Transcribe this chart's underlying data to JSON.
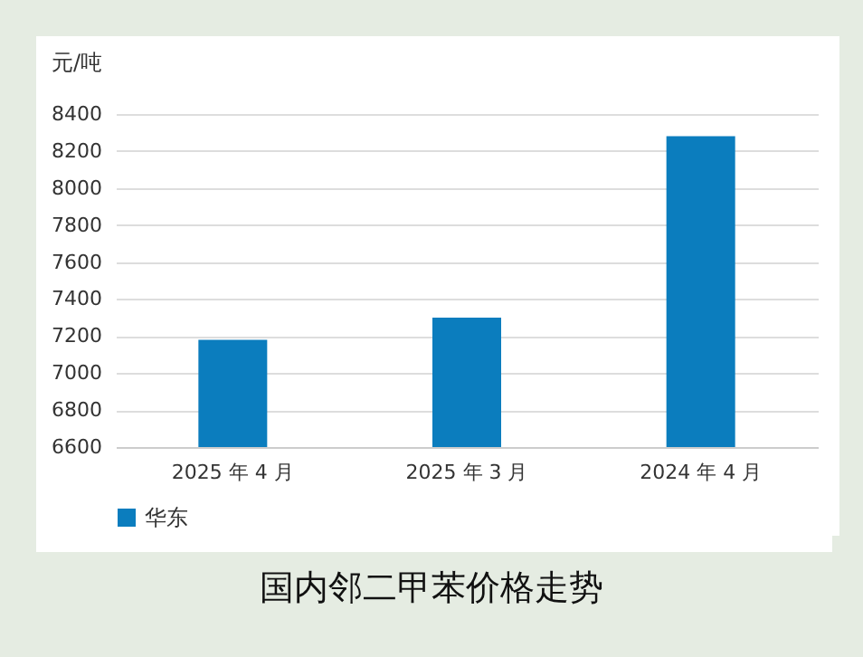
{
  "chart_data": {
    "type": "bar",
    "title": "国内邻二甲苯价格走势",
    "ylabel": "元/吨",
    "categories": [
      "2025 年 4 月",
      "2025 年 3 月",
      "2024 年 4 月"
    ],
    "series": [
      {
        "name": "华东",
        "color": "#0b7dbe",
        "values": [
          7180,
          7300,
          8280
        ]
      }
    ],
    "ylim": [
      6600,
      8400
    ],
    "yticks": [
      6600,
      6800,
      7000,
      7200,
      7400,
      7600,
      7800,
      8000,
      8200,
      8400
    ],
    "grid": "y",
    "legend": "bottom"
  }
}
